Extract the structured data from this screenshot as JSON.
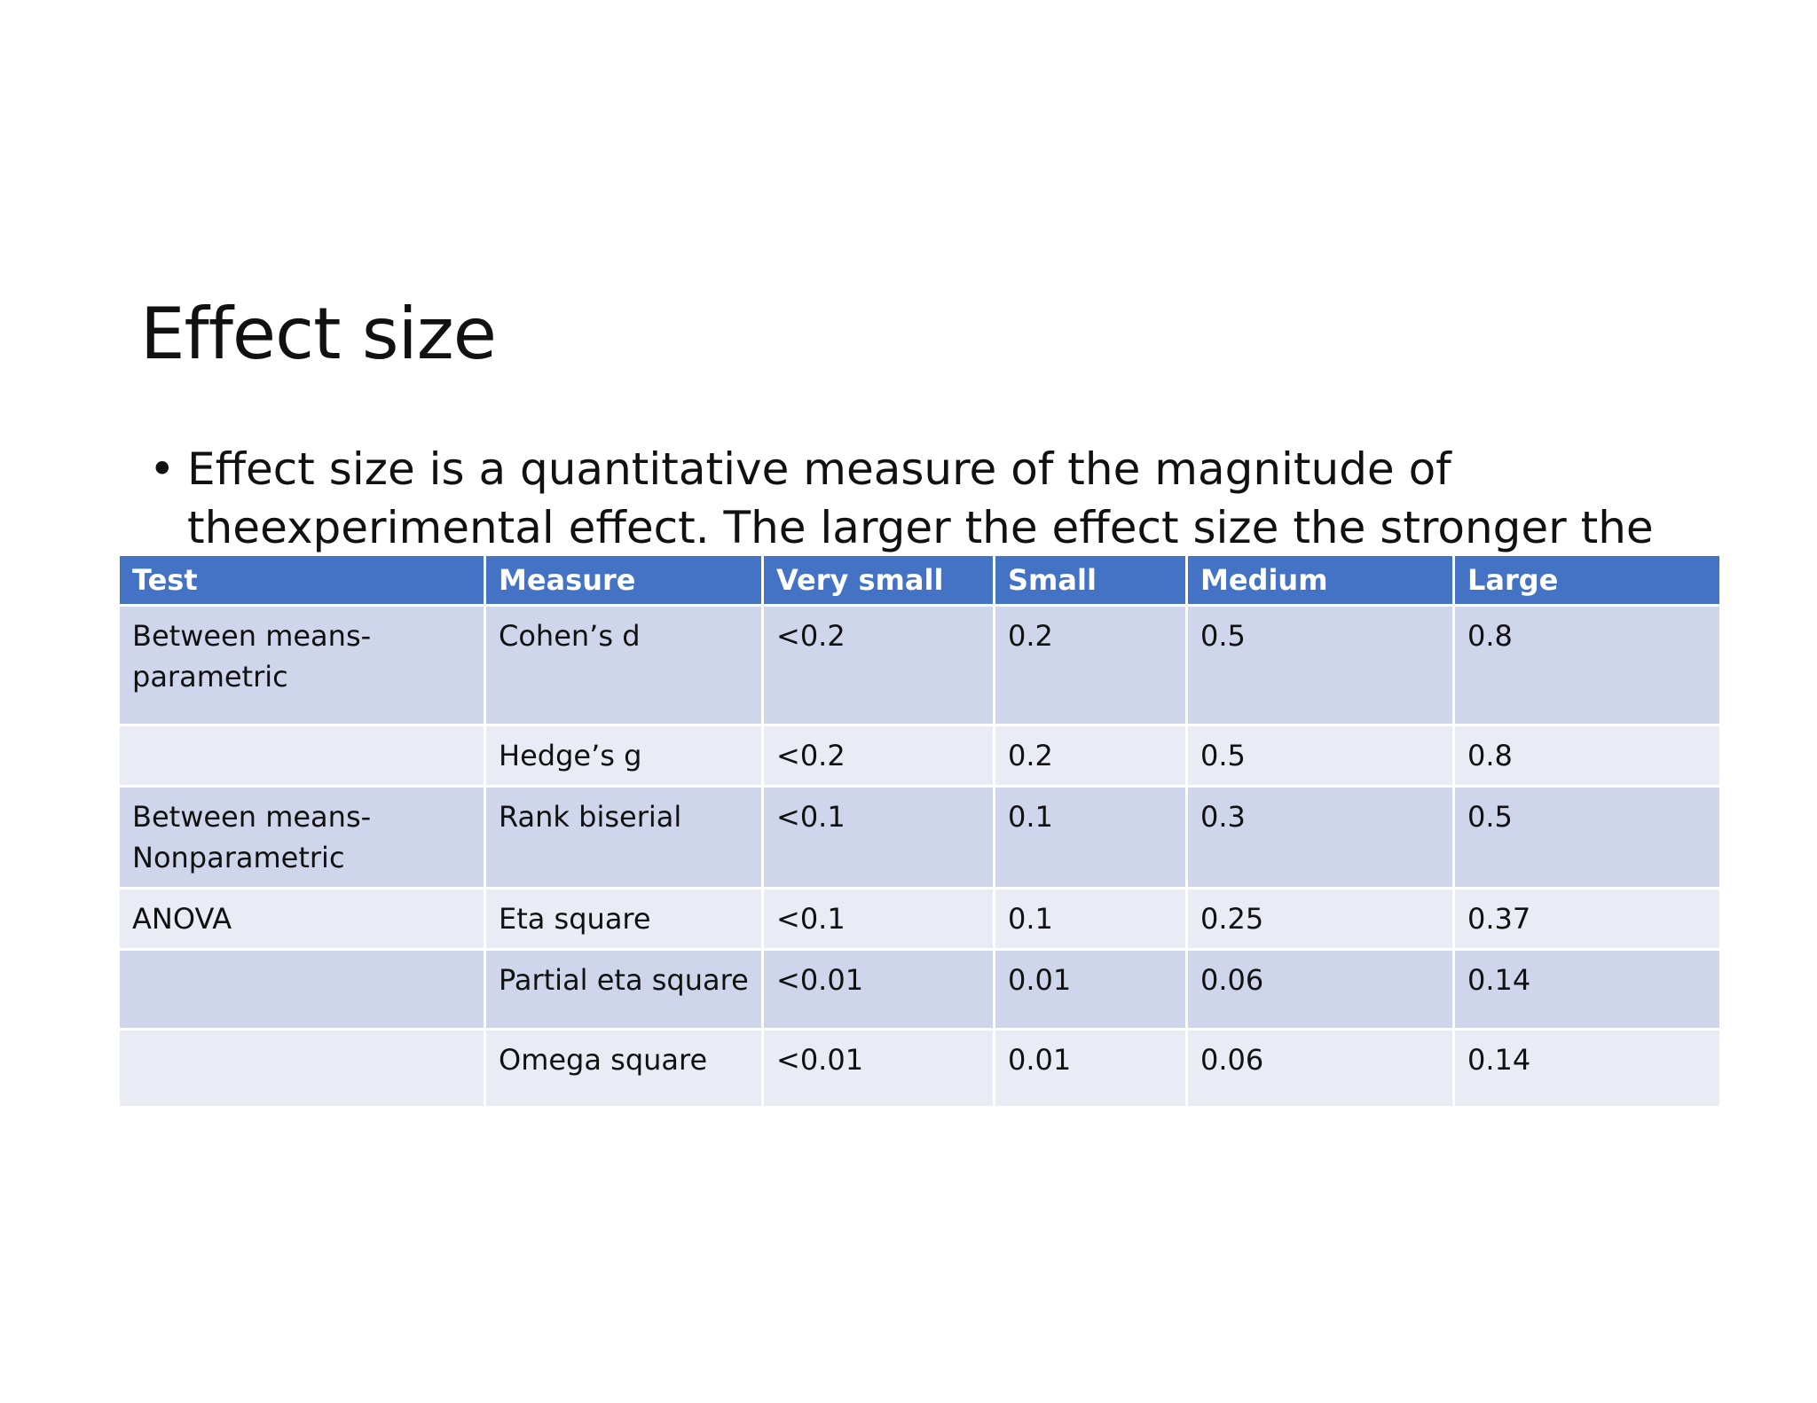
{
  "slide": {
    "title": "Effect size",
    "bullet": {
      "lines": [
        "Effect size is a quantitative measure of the magnitude of the",
        "experimental effect. The larger the effect size the stronger the"
      ]
    },
    "table": {
      "header": [
        "Test",
        "Measure",
        "Very small",
        "Small",
        "Medium",
        "Large"
      ],
      "rows": [
        [
          "Between means-\nparametric",
          "Cohen’s d",
          "<0.2",
          "0.2",
          "0.5",
          "0.8"
        ],
        [
          null,
          "Hedge’s g",
          "<0.2",
          "0.2",
          "0.5",
          "0.8"
        ],
        [
          "Between means-\nNonparametric",
          "Rank biserial",
          "<0.1",
          "0.1",
          "0.3",
          "0.5"
        ],
        [
          "ANOVA",
          "Eta square",
          "<0.1",
          "0.1",
          "0.25",
          "0.37"
        ],
        [
          null,
          "Partial eta square",
          "<0.01",
          "0.01",
          "0.06",
          "0.14"
        ],
        [
          null,
          "Omega square",
          "<0.01",
          "0.01",
          "0.06",
          "0.14"
        ]
      ]
    }
  }
}
